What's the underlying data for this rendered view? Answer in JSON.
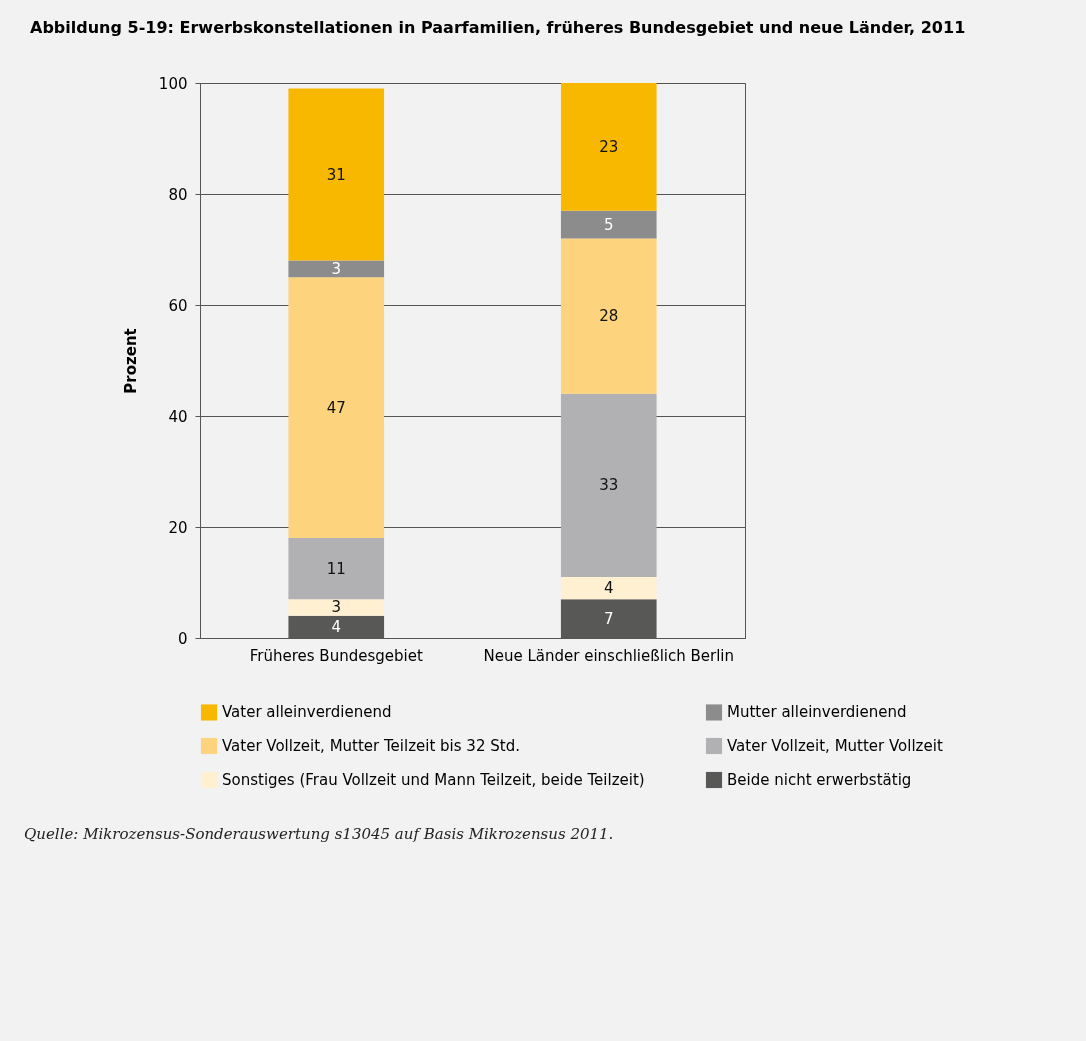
{
  "chart_data": {
    "type": "bar",
    "title": "Abbildung 5-19: Erwerbskonstellationen in Paarfamilien, früheres Bundesgebiet und neue Länder, 2011",
    "ylabel": "Prozent",
    "categories": [
      "Früheres Bundesgebiet",
      "Neue Länder einschließlich Berlin"
    ],
    "stacked": true,
    "data_labels": true,
    "ylim": [
      0,
      100
    ],
    "yticks": [
      0,
      20,
      40,
      60,
      80,
      100
    ],
    "grid": "y",
    "legend": "bottom",
    "series": [
      {
        "name": "Beide nicht erwerbstätig",
        "color": "#585857",
        "values": [
          4,
          7
        ]
      },
      {
        "name": "Sonstiges (Frau Vollzeit und Mann Teilzeit, beide Teilzeit)",
        "color": "#fff0d2",
        "values": [
          3,
          4
        ]
      },
      {
        "name": "Vater Vollzeit, Mutter Vollzeit",
        "color": "#b1b1b3",
        "values": [
          11,
          33
        ]
      },
      {
        "name": "Vater Vollzeit, Mutter Teilzeit bis 32 Std.",
        "color": "#fdd47d",
        "values": [
          47,
          28
        ]
      },
      {
        "name": "Mutter alleinverdienend",
        "color": "#8c8c8c",
        "values": [
          3,
          5
        ]
      },
      {
        "name": "Vater alleinverdienend",
        "color": "#f9b800",
        "values": [
          31,
          23
        ]
      }
    ],
    "annotations": [
      "Quelle: Mikrozensus-Sonderauswertung s13045 auf Basis Mikrozensus 2011."
    ]
  }
}
